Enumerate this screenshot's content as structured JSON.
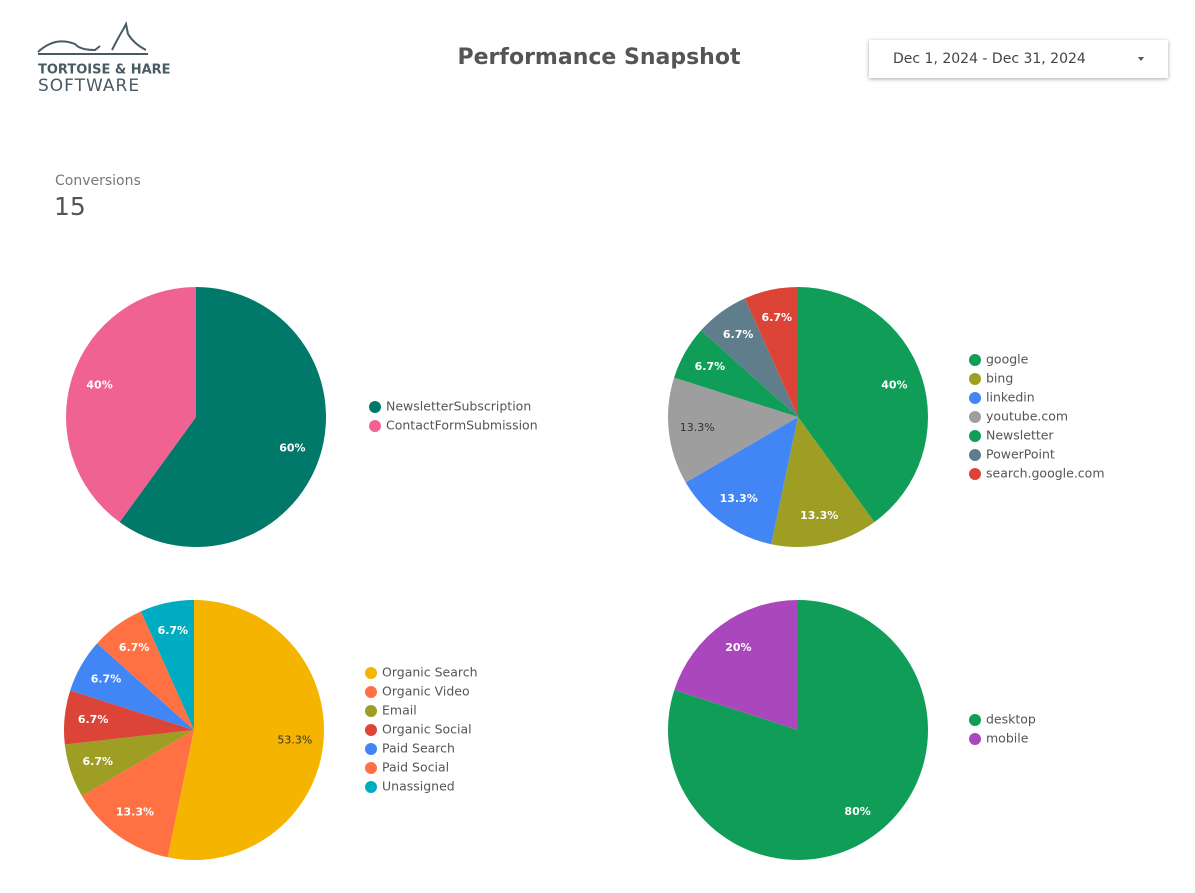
{
  "header": {
    "logo_top": "TORTOISE & HARE",
    "logo_bottom": "SOFTWARE",
    "title": "Performance Snapshot",
    "date_range": "Dec 1, 2024 - Dec 31, 2024"
  },
  "scorecard": {
    "label": "Conversions",
    "value": 15
  },
  "chart_data": [
    {
      "type": "pie",
      "categories": [
        "NewsletterSubscription",
        "ContactFormSubmission"
      ],
      "values": [
        60,
        40
      ],
      "value_labels": [
        "60%",
        "40%"
      ],
      "colors": [
        "#00796b",
        "#f06292"
      ]
    },
    {
      "type": "pie",
      "categories": [
        "google",
        "bing",
        "linkedin",
        "youtube.com",
        "Newsletter",
        "PowerPoint",
        "search.google.com"
      ],
      "values": [
        40,
        13.3,
        13.3,
        13.3,
        6.7,
        6.7,
        6.7
      ],
      "value_labels": [
        "40%",
        "13.3%",
        "13.3%",
        "13.3%",
        "6.7%",
        "6.7%",
        "6.7%"
      ],
      "colors": [
        "#0f9d58",
        "#9e9d24",
        "#4285f4",
        "#9e9e9e",
        "#0f9d58",
        "#607d8b",
        "#db4437"
      ]
    },
    {
      "type": "pie",
      "categories": [
        "Organic Search",
        "Organic Video",
        "Email",
        "Organic Social",
        "Paid Search",
        "Paid Social",
        "Unassigned"
      ],
      "values": [
        53.3,
        13.3,
        6.7,
        6.7,
        6.7,
        6.7,
        6.7
      ],
      "value_labels": [
        "53.3%",
        "13.3%",
        "6.7%",
        "6.7%",
        "6.7%",
        "6.7%",
        "6.7%"
      ],
      "colors": [
        "#f4b400",
        "#ff7043",
        "#9e9d24",
        "#db4437",
        "#4285f4",
        "#ff7043",
        "#00acc1"
      ]
    },
    {
      "type": "pie",
      "categories": [
        "desktop",
        "mobile"
      ],
      "values": [
        80,
        20
      ],
      "value_labels": [
        "80%",
        "20%"
      ],
      "colors": [
        "#0f9d58",
        "#ab47bc"
      ]
    }
  ]
}
